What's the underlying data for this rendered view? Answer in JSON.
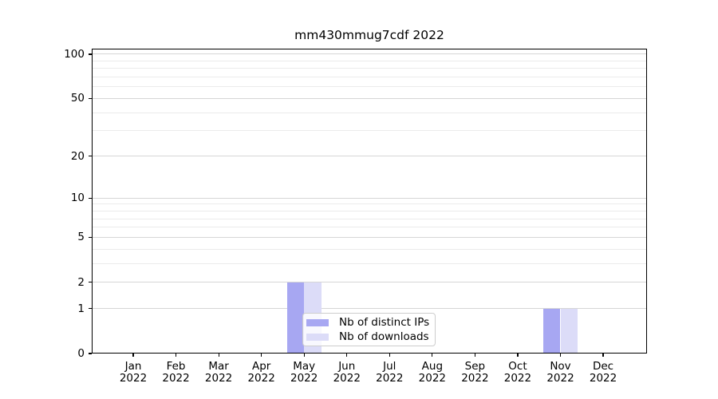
{
  "chart_data": {
    "type": "bar",
    "title": "mm430mmug7cdf 2022",
    "categories": [
      "Jan",
      "Feb",
      "Mar",
      "Apr",
      "May",
      "Jun",
      "Jul",
      "Aug",
      "Sep",
      "Oct",
      "Nov",
      "Dec"
    ],
    "year_label": "2022",
    "series": [
      {
        "name": "Nb of distinct IPs",
        "color": "#a7a7f2",
        "values": [
          0,
          0,
          0,
          0,
          2,
          0,
          0,
          0,
          0,
          0,
          1,
          0
        ]
      },
      {
        "name": "Nb of downloads",
        "color": "#dcdcf8",
        "values": [
          0,
          0,
          0,
          0,
          2,
          0,
          0,
          0,
          0,
          0,
          1,
          0
        ]
      }
    ],
    "y_axis": {
      "scale": "log1p",
      "major_ticks": [
        0,
        1,
        2,
        5,
        10,
        20,
        50,
        100
      ],
      "minor_ticks": [
        3,
        4,
        6,
        7,
        8,
        9,
        30,
        40,
        60,
        70,
        80,
        90
      ],
      "ylim": [
        0,
        110
      ]
    },
    "grid": "horizontal",
    "legend_position": "lower-center"
  },
  "colors": {
    "major_grid": "#d6d6d6",
    "minor_grid": "#ebebeb",
    "axis": "#000000",
    "legend_border": "#cdcdcd",
    "background": "#ffffff"
  }
}
